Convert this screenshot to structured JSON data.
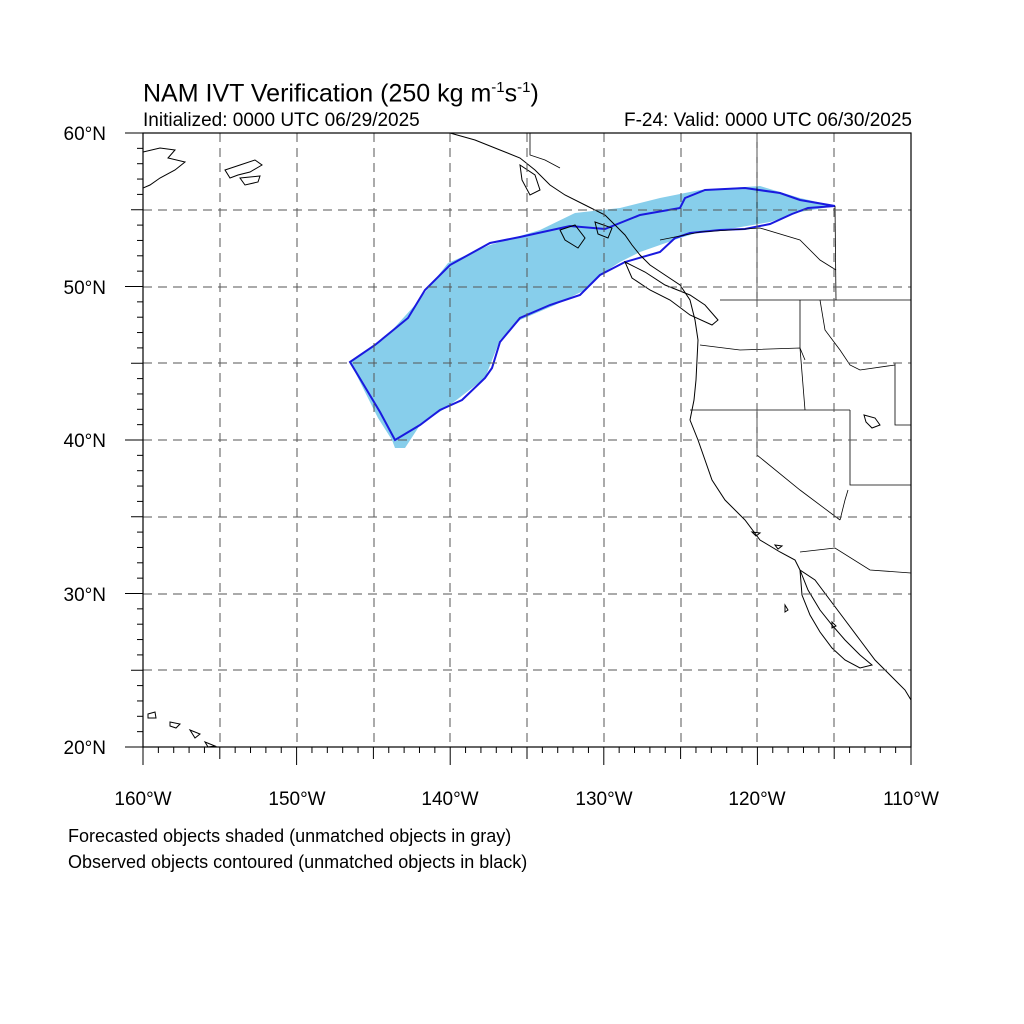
{
  "title": {
    "prefix": "NAM IVT Verification (250 kg m",
    "exp1": "-1",
    "mid": "s",
    "exp2": "-1",
    "suffix": ")"
  },
  "initialized": "Initialized: 0000 UTC 06/29/2025",
  "valid": "F-24: Valid: 0000 UTC 06/30/2025",
  "lat_labels": [
    "60°N",
    "50°N",
    "40°N",
    "30°N",
    "20°N"
  ],
  "lon_labels": [
    "160°W",
    "150°W",
    "140°W",
    "130°W",
    "120°W",
    "110°W"
  ],
  "footnote": {
    "line1": "Forecasted objects shaded (unmatched objects in gray)",
    "line2": "Observed objects contoured (unmatched objects in black)"
  },
  "colors": {
    "forecast_fill": "#87ceeb",
    "observed_contour": "#1a1adf",
    "coastline": "#000000",
    "grid": "#555555"
  }
}
